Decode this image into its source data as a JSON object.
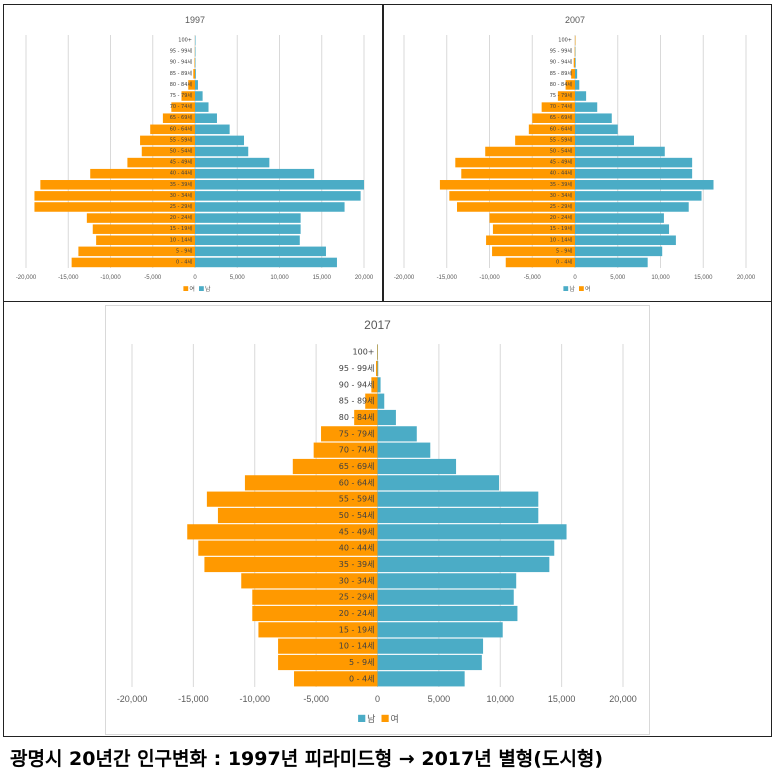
{
  "caption": "광명시 20년간 인구변화 :  1997년 피라미드형 → 2017년 별형(도시형)",
  "colors": {
    "male": "#4bacc6",
    "female": "#ff9900",
    "grid": "#d9d9d9",
    "text": "#595959"
  },
  "chart_data": [
    {
      "type": "bar",
      "orientation": "horizontal-pyramid",
      "title": "1997",
      "categories": [
        "0 - 4세",
        "5 - 9세",
        "10 - 14세",
        "15 - 19세",
        "20 - 24세",
        "25 - 29세",
        "30 - 34세",
        "35 - 39세",
        "40 - 44세",
        "45 - 49세",
        "50 - 54세",
        "55 - 59세",
        "60 - 64세",
        "65 - 69세",
        "70 - 74세",
        "75 - 79세",
        "80 - 84세",
        "85 - 89세",
        "90 - 94세",
        "95 - 99세",
        "100+"
      ],
      "series": [
        {
          "name": "여",
          "values": [
            -14600,
            -13800,
            -11700,
            -12100,
            -12800,
            -19000,
            -19000,
            -18300,
            -12400,
            -8000,
            -6300,
            -6500,
            -5300,
            -3800,
            -2800,
            -1600,
            -800,
            -200,
            -60,
            -20,
            -5
          ]
        },
        {
          "name": "남",
          "values": [
            16800,
            15500,
            12400,
            12500,
            12500,
            17700,
            19600,
            20000,
            14100,
            8800,
            6300,
            5800,
            4100,
            2600,
            1600,
            900,
            350,
            100,
            30,
            10,
            3
          ]
        }
      ],
      "xlim": [
        -20000,
        20000
      ],
      "ticks": [
        "-20,000",
        "-15,000",
        "-10,000",
        "-5,000",
        "0",
        "5,000",
        "10,000",
        "15,000",
        "20,000"
      ],
      "legend": [
        "여",
        "남"
      ],
      "legend_position": "bottom",
      "grid": true
    },
    {
      "type": "bar",
      "orientation": "horizontal-pyramid",
      "title": "2007",
      "categories": [
        "0 - 4세",
        "5 - 9세",
        "10 - 14세",
        "15 - 19세",
        "20 - 24세",
        "25 - 29세",
        "30 - 34세",
        "35 - 39세",
        "40 - 44세",
        "45 - 49세",
        "50 - 54세",
        "55 - 59세",
        "60 - 64세",
        "65 - 69세",
        "70 - 74세",
        "75 - 79세",
        "80 - 84세",
        "85 - 89세",
        "90 - 94세",
        "95 - 99세",
        "100+"
      ],
      "series": [
        {
          "name": "남",
          "values": [
            8500,
            10200,
            11800,
            11000,
            10400,
            13300,
            14800,
            16200,
            13700,
            13700,
            10500,
            6900,
            5000,
            4300,
            2600,
            1300,
            500,
            250,
            80,
            20,
            5
          ]
        },
        {
          "name": "여",
          "values": [
            -8100,
            -9700,
            -10400,
            -9600,
            -10000,
            -13800,
            -14700,
            -15800,
            -13300,
            -14000,
            -10500,
            -7000,
            -5400,
            -5000,
            -3900,
            -2000,
            -1100,
            -450,
            -150,
            -40,
            -10
          ]
        }
      ],
      "xlim": [
        -20000,
        20000
      ],
      "ticks": [
        "-20,000",
        "-15,000",
        "-10,000",
        "-5,000",
        "0",
        "5,000",
        "10,000",
        "15,000",
        "20,000"
      ],
      "legend": [
        "남",
        "여"
      ],
      "legend_position": "bottom",
      "grid": true
    },
    {
      "type": "bar",
      "orientation": "horizontal-pyramid",
      "title": "2017",
      "categories": [
        "0 - 4세",
        "5 - 9세",
        "10 - 14세",
        "15 - 19세",
        "20 - 24세",
        "25 - 29세",
        "30 - 34세",
        "35 - 39세",
        "40 - 44세",
        "45 - 49세",
        "50 - 54세",
        "55 - 59세",
        "60 - 64세",
        "65 - 69세",
        "70 - 74세",
        "75 - 79세",
        "80 - 84세",
        "85 - 89세",
        "90 - 94세",
        "95 - 99세",
        "100+"
      ],
      "series": [
        {
          "name": "남",
          "values": [
            7100,
            8500,
            8600,
            10200,
            11400,
            11100,
            11300,
            14000,
            14400,
            15400,
            13100,
            13100,
            9900,
            6400,
            4300,
            3200,
            1500,
            550,
            250,
            60,
            15
          ]
        },
        {
          "name": "여",
          "values": [
            -6800,
            -8100,
            -8100,
            -9700,
            -10200,
            -10200,
            -11100,
            -14100,
            -14600,
            -15500,
            -13000,
            -13900,
            -10800,
            -6900,
            -5200,
            -4600,
            -1900,
            -1000,
            -500,
            -120,
            -30
          ]
        }
      ],
      "xlim": [
        -20000,
        20000
      ],
      "ticks": [
        "-20,000",
        "-15,000",
        "-10,000",
        "-5,000",
        "0",
        "5,000",
        "10,000",
        "15,000",
        "20,000"
      ],
      "legend": [
        "남",
        "여"
      ],
      "legend_position": "bottom",
      "grid": true
    }
  ]
}
